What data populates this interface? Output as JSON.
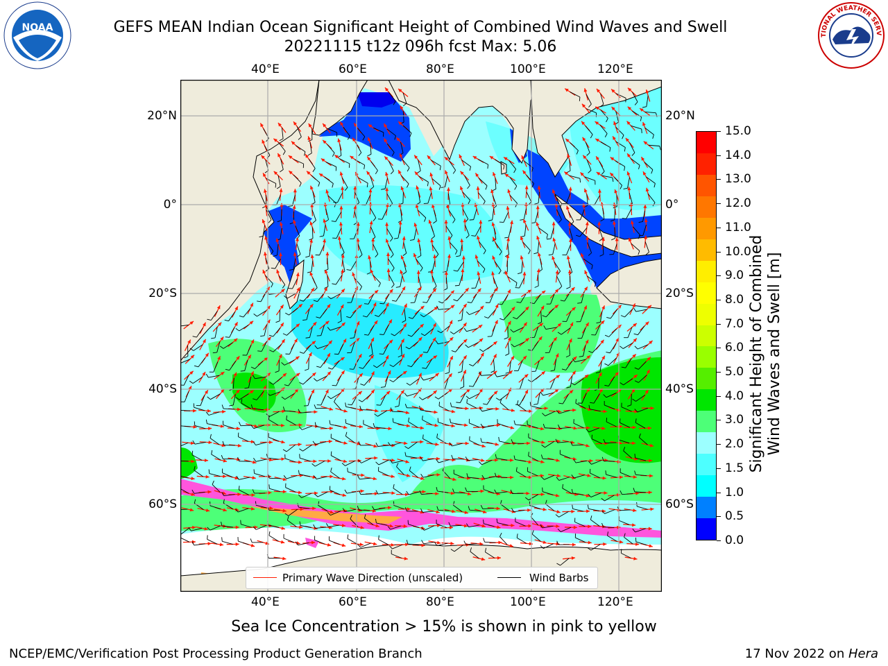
{
  "header": {
    "title_line1": "GEFS MEAN Indian Ocean Significant Height of Combined Wind Waves and Swell",
    "title_line2": "20221115 t12z 096h fcst   Max: 5.06"
  },
  "logos": {
    "left_text": "NOAA",
    "right_text": "NATIONAL WEATHER SERVICE"
  },
  "map": {
    "lon_ticks": [
      "40°E",
      "60°E",
      "80°E",
      "100°E",
      "120°E"
    ],
    "lat_ticks": [
      "20°N",
      "0°",
      "20°S",
      "40°S",
      "60°S"
    ],
    "legend": {
      "primary_wave": "Primary Wave Direction (unscaled)",
      "wind_barbs": "Wind Barbs"
    },
    "colors": {
      "land": "#efecdc",
      "ocean_low": "#00e6ff",
      "ocean_mid": "#9cffff",
      "ocean_green": "#4dff78",
      "ocean_bright_green": "#00e600",
      "ocean_blue": "#0044ff",
      "ice_pink": "#ff55dd",
      "ice_orange": "#ffaa44",
      "wave_arrow": "#ff1a00",
      "wind_barb": "#000000",
      "grid": "#aaaaaa"
    }
  },
  "colorbar": {
    "label_line1": "Significant Height of Combined",
    "label_line2": "Wind Waves and Swell [m]",
    "ticks": [
      "15.0",
      "14.0",
      "13.0",
      "12.0",
      "11.0",
      "10.0",
      "9.0",
      "8.0",
      "7.0",
      "6.0",
      "5.0",
      "4.0",
      "3.0",
      "2.0",
      "1.5",
      "1.0",
      "0.5",
      "0.0"
    ],
    "colors_top_to_bottom": [
      "#ff0000",
      "#ff2200",
      "#ff5500",
      "#ff7700",
      "#ff9900",
      "#ffbb00",
      "#ffee00",
      "#ffff00",
      "#eeff00",
      "#ccff00",
      "#99ff00",
      "#55ee00",
      "#00e600",
      "#4dff78",
      "#9cffff",
      "#4dffff",
      "#00ffff",
      "#0080ff",
      "#0000ff"
    ]
  },
  "caption": "Sea Ice Concentration > 15% is shown in pink to yellow",
  "footer": {
    "left": "NCEP/EMC/Verification Post Processing Product Generation Branch",
    "right_date": "17 Nov 2022 on ",
    "right_host": "Hera"
  }
}
